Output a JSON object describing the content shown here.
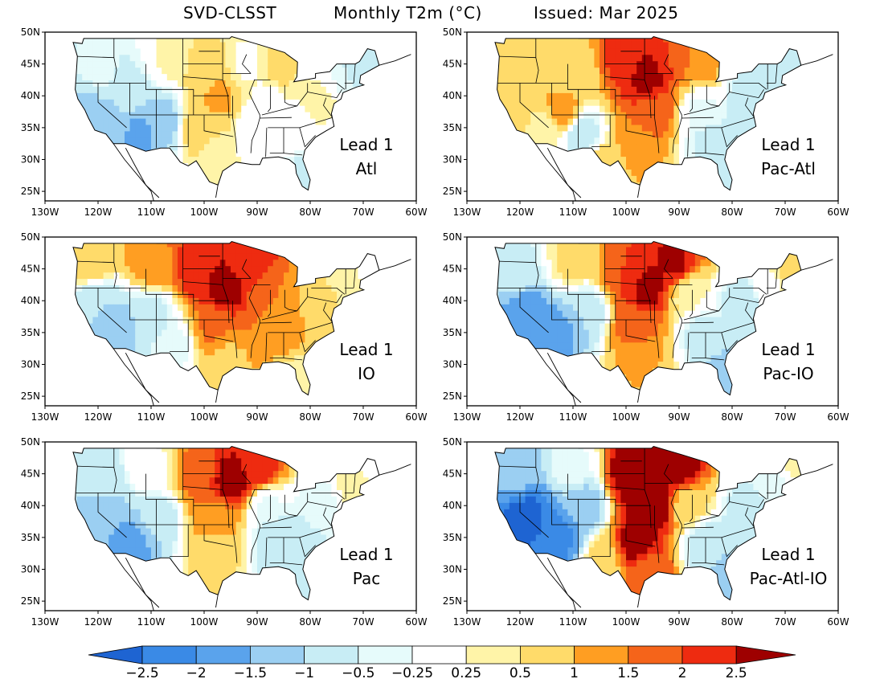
{
  "title": {
    "model": "SVD-CLSST",
    "variable": "Monthly T2m (°C)",
    "issued": "Issued: Mar 2025"
  },
  "axes": {
    "lon_labels": [
      "130W",
      "120W",
      "110W",
      "100W",
      "90W",
      "80W",
      "70W",
      "60W"
    ],
    "lat_labels": [
      "50N",
      "45N",
      "40N",
      "35N",
      "30N",
      "25N"
    ]
  },
  "panels": [
    {
      "id": "atl",
      "lead": "Lead 1",
      "predictor": "Atl",
      "field": [
        {
          "lon": -120,
          "lat": 44,
          "v": -0.4
        },
        {
          "lon": -122,
          "lat": 38,
          "v": -1.1
        },
        {
          "lon": -118,
          "lat": 36,
          "v": -1.4
        },
        {
          "lon": -112,
          "lat": 34,
          "v": -1.6
        },
        {
          "lon": -108,
          "lat": 36,
          "v": -1.3
        },
        {
          "lon": -115,
          "lat": 41,
          "v": -0.6
        },
        {
          "lon": -106,
          "lat": 46,
          "v": 0.3
        },
        {
          "lon": -100,
          "lat": 44,
          "v": 0.8
        },
        {
          "lon": -97,
          "lat": 40,
          "v": 1.1
        },
        {
          "lon": -101,
          "lat": 35,
          "v": 0.9
        },
        {
          "lon": -98,
          "lat": 31,
          "v": 0.4
        },
        {
          "lon": -92,
          "lat": 45,
          "v": 0.2
        },
        {
          "lon": -88,
          "lat": 40,
          "v": 0.2
        },
        {
          "lon": -90,
          "lat": 35,
          "v": -0.2
        },
        {
          "lon": -84,
          "lat": 33,
          "v": -0.1
        },
        {
          "lon": -82,
          "lat": 28,
          "v": -0.6
        },
        {
          "lon": -78,
          "lat": 39,
          "v": 0.3
        },
        {
          "lon": -72,
          "lat": 43,
          "v": -0.5
        },
        {
          "lon": -68,
          "lat": 46,
          "v": -0.9
        },
        {
          "lon": -86,
          "lat": 44,
          "v": 0.6
        }
      ]
    },
    {
      "id": "pac-atl",
      "lead": "Lead 1",
      "predictor": "Pac-Atl",
      "field": [
        {
          "lon": -121,
          "lat": 44,
          "v": 0.7
        },
        {
          "lon": -121,
          "lat": 38,
          "v": 1.0
        },
        {
          "lon": -116,
          "lat": 35,
          "v": 0.3
        },
        {
          "lon": -112,
          "lat": 38,
          "v": 1.2
        },
        {
          "lon": -108,
          "lat": 34,
          "v": -0.8
        },
        {
          "lon": -110,
          "lat": 44,
          "v": 0.5
        },
        {
          "lon": -100,
          "lat": 46,
          "v": 2.2
        },
        {
          "lon": -96,
          "lat": 43,
          "v": 2.8
        },
        {
          "lon": -95,
          "lat": 38,
          "v": 1.9
        },
        {
          "lon": -98,
          "lat": 33,
          "v": 1.4
        },
        {
          "lon": -91,
          "lat": 46,
          "v": 2.0
        },
        {
          "lon": -86,
          "lat": 45,
          "v": 1.2
        },
        {
          "lon": -86,
          "lat": 38,
          "v": -0.3
        },
        {
          "lon": -84,
          "lat": 33,
          "v": -0.6
        },
        {
          "lon": -81,
          "lat": 29,
          "v": -0.9
        },
        {
          "lon": -76,
          "lat": 40,
          "v": -0.9
        },
        {
          "lon": -71,
          "lat": 44,
          "v": -0.8
        },
        {
          "lon": -104,
          "lat": 30,
          "v": 0.6
        }
      ]
    },
    {
      "id": "io",
      "lead": "Lead 1",
      "predictor": "IO",
      "field": [
        {
          "lon": -121,
          "lat": 46,
          "v": 1.0
        },
        {
          "lon": -120,
          "lat": 40,
          "v": -1.0
        },
        {
          "lon": -116,
          "lat": 36,
          "v": -1.3
        },
        {
          "lon": -110,
          "lat": 38,
          "v": -0.7
        },
        {
          "lon": -110,
          "lat": 46,
          "v": 1.4
        },
        {
          "lon": -101,
          "lat": 45,
          "v": 2.4
        },
        {
          "lon": -96,
          "lat": 42,
          "v": 2.8
        },
        {
          "lon": -92,
          "lat": 46,
          "v": 2.4
        },
        {
          "lon": -98,
          "lat": 36,
          "v": 1.6
        },
        {
          "lon": -96,
          "lat": 31,
          "v": 0.9
        },
        {
          "lon": -88,
          "lat": 40,
          "v": 1.5
        },
        {
          "lon": -85,
          "lat": 35,
          "v": 1.3
        },
        {
          "lon": -82,
          "lat": 29,
          "v": 0.4
        },
        {
          "lon": -78,
          "lat": 39,
          "v": 0.7
        },
        {
          "lon": -73,
          "lat": 43,
          "v": 0.3
        },
        {
          "lon": -69,
          "lat": 46,
          "v": 0.2
        },
        {
          "lon": -106,
          "lat": 33,
          "v": -0.4
        }
      ]
    },
    {
      "id": "pac-io",
      "lead": "Lead 1",
      "predictor": "Pac-IO",
      "field": [
        {
          "lon": -121,
          "lat": 45,
          "v": -0.6
        },
        {
          "lon": -119,
          "lat": 38,
          "v": -1.8
        },
        {
          "lon": -113,
          "lat": 35,
          "v": -1.8
        },
        {
          "lon": -108,
          "lat": 38,
          "v": -1.0
        },
        {
          "lon": -110,
          "lat": 46,
          "v": 0.6
        },
        {
          "lon": -100,
          "lat": 45,
          "v": 2.0
        },
        {
          "lon": -96,
          "lat": 42,
          "v": 2.7
        },
        {
          "lon": -91,
          "lat": 46,
          "v": 2.6
        },
        {
          "lon": -98,
          "lat": 36,
          "v": 1.8
        },
        {
          "lon": -97,
          "lat": 31,
          "v": 1.0
        },
        {
          "lon": -88,
          "lat": 41,
          "v": 0.3
        },
        {
          "lon": -86,
          "lat": 35,
          "v": -0.6
        },
        {
          "lon": -82,
          "lat": 29,
          "v": -1.1
        },
        {
          "lon": -78,
          "lat": 40,
          "v": -0.7
        },
        {
          "lon": -73,
          "lat": 43,
          "v": 0.2
        },
        {
          "lon": -69,
          "lat": 46,
          "v": 0.9
        }
      ]
    },
    {
      "id": "pac",
      "lead": "Lead 1",
      "predictor": "Pac",
      "field": [
        {
          "lon": -121,
          "lat": 45,
          "v": -0.8
        },
        {
          "lon": -120,
          "lat": 38,
          "v": -1.2
        },
        {
          "lon": -114,
          "lat": 34,
          "v": -1.8
        },
        {
          "lon": -109,
          "lat": 38,
          "v": -0.9
        },
        {
          "lon": -109,
          "lat": 46,
          "v": 0.2
        },
        {
          "lon": -101,
          "lat": 45,
          "v": 1.8
        },
        {
          "lon": -95,
          "lat": 44,
          "v": 2.8
        },
        {
          "lon": -90,
          "lat": 46,
          "v": 2.4
        },
        {
          "lon": -98,
          "lat": 38,
          "v": 1.3
        },
        {
          "lon": -98,
          "lat": 32,
          "v": 0.6
        },
        {
          "lon": -88,
          "lat": 40,
          "v": -0.3
        },
        {
          "lon": -86,
          "lat": 35,
          "v": -0.9
        },
        {
          "lon": -82,
          "lat": 29,
          "v": -1.0
        },
        {
          "lon": -78,
          "lat": 40,
          "v": -0.5
        },
        {
          "lon": -72,
          "lat": 43,
          "v": 0.4
        },
        {
          "lon": -68,
          "lat": 46,
          "v": 0.2
        }
      ]
    },
    {
      "id": "pac-atl-io",
      "lead": "Lead 1",
      "predictor": "Pac-Atl-IO",
      "field": [
        {
          "lon": -121,
          "lat": 45,
          "v": -1.4
        },
        {
          "lon": -119,
          "lat": 38,
          "v": -2.8
        },
        {
          "lon": -113,
          "lat": 35,
          "v": -2.2
        },
        {
          "lon": -108,
          "lat": 40,
          "v": -1.4
        },
        {
          "lon": -110,
          "lat": 46,
          "v": -0.3
        },
        {
          "lon": -99,
          "lat": 45,
          "v": 3.0
        },
        {
          "lon": -95,
          "lat": 40,
          "v": 3.0
        },
        {
          "lon": -90,
          "lat": 46,
          "v": 2.8
        },
        {
          "lon": -98,
          "lat": 34,
          "v": 2.8
        },
        {
          "lon": -96,
          "lat": 30,
          "v": 1.8
        },
        {
          "lon": -104,
          "lat": 31,
          "v": 0.8
        },
        {
          "lon": -88,
          "lat": 40,
          "v": 0.6
        },
        {
          "lon": -85,
          "lat": 34,
          "v": -0.8
        },
        {
          "lon": -81,
          "lat": 29,
          "v": -1.2
        },
        {
          "lon": -77,
          "lat": 39,
          "v": -0.8
        },
        {
          "lon": -72,
          "lat": 43,
          "v": -0.4
        },
        {
          "lon": -68,
          "lat": 46,
          "v": 0.3
        }
      ]
    }
  ],
  "colorbar": {
    "ticks": [
      "−2.5",
      "−2",
      "−1.5",
      "−1",
      "−0.5",
      "−0.25",
      "0.25",
      "0.5",
      "1",
      "1.5",
      "2",
      "2.5"
    ],
    "colors": [
      "#1e64d2",
      "#3a8ae6",
      "#5aa3ec",
      "#9bcff2",
      "#c8edf5",
      "#e6fbfb",
      "#ffffff",
      "#fff4a8",
      "#ffdb6a",
      "#ff9e22",
      "#f5641a",
      "#ee2b10",
      "#9e0000"
    ]
  }
}
